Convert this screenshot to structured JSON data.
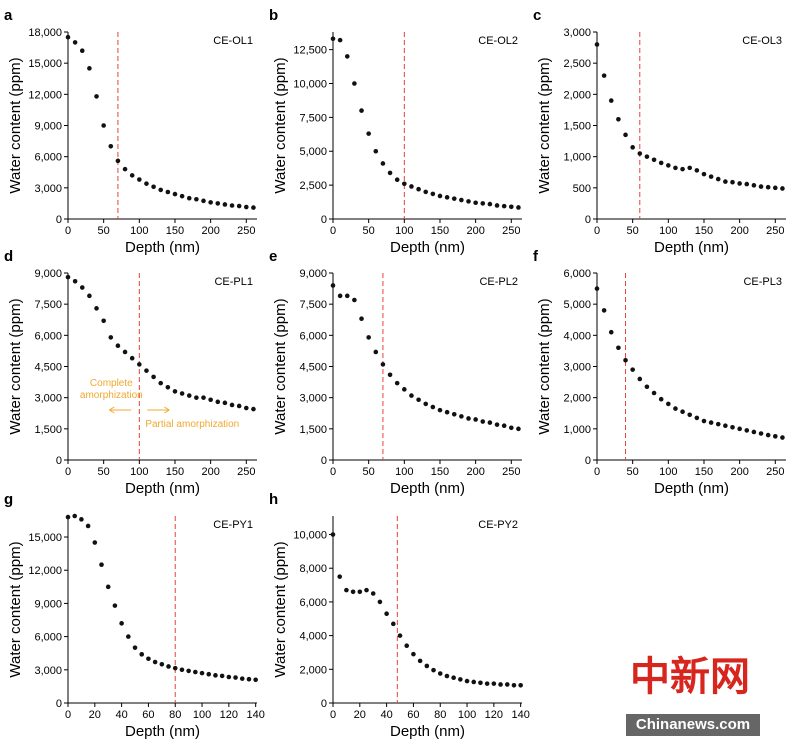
{
  "chart_data": [
    {
      "type": "scatter",
      "panel": "a",
      "title": "CE-OL1",
      "x_label": "Depth (nm)",
      "y_label": "Water content (ppm)",
      "color": "#111111",
      "vline": 70,
      "vline_color": "#e8413c",
      "x": [
        0,
        10,
        20,
        30,
        40,
        50,
        60,
        70,
        80,
        90,
        100,
        110,
        120,
        130,
        140,
        150,
        160,
        170,
        180,
        190,
        200,
        210,
        220,
        230,
        240,
        250,
        260
      ],
      "y": [
        17500,
        17000,
        16200,
        14500,
        11800,
        9000,
        7000,
        5600,
        4800,
        4200,
        3800,
        3400,
        3100,
        2800,
        2600,
        2400,
        2200,
        2000,
        1900,
        1750,
        1600,
        1500,
        1400,
        1300,
        1250,
        1150,
        1100
      ],
      "xlim": [
        0,
        265
      ],
      "ylim": [
        0,
        18000
      ],
      "xticks": [
        0,
        50,
        100,
        150,
        200,
        250
      ],
      "yticks": [
        0,
        {
          "value": 3000,
          "label": "3,000"
        },
        {
          "value": 6000,
          "label": "6,000"
        },
        {
          "value": 9000,
          "label": "9,000"
        },
        {
          "value": 12000,
          "label": "12,000"
        },
        {
          "value": 15000,
          "label": "15,000"
        },
        {
          "value": 18000,
          "label": "18,000"
        }
      ]
    },
    {
      "type": "scatter",
      "panel": "b",
      "title": "CE-OL2",
      "x_label": "Depth (nm)",
      "y_label": "Water content (ppm)",
      "color": "#111111",
      "vline": 100,
      "vline_color": "#e8413c",
      "x": [
        0,
        10,
        20,
        30,
        40,
        50,
        60,
        70,
        80,
        90,
        100,
        110,
        120,
        130,
        140,
        150,
        160,
        170,
        180,
        190,
        200,
        210,
        220,
        230,
        240,
        250,
        260
      ],
      "y": [
        13300,
        13200,
        12000,
        10000,
        8000,
        6300,
        5000,
        4100,
        3400,
        2900,
        2600,
        2400,
        2200,
        2000,
        1850,
        1700,
        1600,
        1500,
        1400,
        1300,
        1200,
        1150,
        1100,
        1000,
        950,
        900,
        850
      ],
      "xlim": [
        0,
        265
      ],
      "ylim": [
        0,
        13800
      ],
      "xticks": [
        0,
        50,
        100,
        150,
        200,
        250
      ],
      "yticks": [
        0,
        {
          "value": 2500,
          "label": "2,500"
        },
        {
          "value": 5000,
          "label": "5,000"
        },
        {
          "value": 7500,
          "label": "7,500"
        },
        {
          "value": 10000,
          "label": "10,000"
        },
        {
          "value": 12500,
          "label": "12,500"
        }
      ]
    },
    {
      "type": "scatter",
      "panel": "c",
      "title": "CE-OL3",
      "x_label": "Depth (nm)",
      "y_label": "Water content (ppm)",
      "color": "#111111",
      "vline": 60,
      "vline_color": "#e8413c",
      "x": [
        0,
        10,
        20,
        30,
        40,
        50,
        60,
        70,
        80,
        90,
        100,
        110,
        120,
        130,
        140,
        150,
        160,
        170,
        180,
        190,
        200,
        210,
        220,
        230,
        240,
        250,
        260
      ],
      "y": [
        2800,
        2300,
        1900,
        1600,
        1350,
        1150,
        1050,
        1000,
        950,
        900,
        860,
        820,
        800,
        820,
        780,
        720,
        680,
        640,
        600,
        590,
        570,
        560,
        540,
        520,
        510,
        500,
        490
      ],
      "xlim": [
        0,
        265
      ],
      "ylim": [
        0,
        3000
      ],
      "xticks": [
        0,
        50,
        100,
        150,
        200,
        250
      ],
      "yticks": [
        0,
        500,
        {
          "value": 1000,
          "label": "1,000"
        },
        {
          "value": 1500,
          "label": "1,500"
        },
        {
          "value": 2000,
          "label": "2,000"
        },
        {
          "value": 2500,
          "label": "2,500"
        },
        {
          "value": 3000,
          "label": "3,000"
        }
      ]
    },
    {
      "type": "scatter",
      "panel": "d",
      "title": "CE-PL1",
      "x_label": "Depth (nm)",
      "y_label": "Water content (ppm)",
      "color": "#111111",
      "vline": 100,
      "vline_color": "#e8413c",
      "annotations": [
        "Complete",
        "amorphization",
        "Partial amorphization"
      ],
      "annotation_color": "#f0a830",
      "x": [
        0,
        10,
        20,
        30,
        40,
        50,
        60,
        70,
        80,
        90,
        100,
        110,
        120,
        130,
        140,
        150,
        160,
        170,
        180,
        190,
        200,
        210,
        220,
        230,
        240,
        250,
        260
      ],
      "y": [
        8800,
        8600,
        8300,
        7900,
        7300,
        6700,
        5900,
        5500,
        5200,
        4900,
        4600,
        4300,
        4000,
        3700,
        3500,
        3300,
        3200,
        3100,
        3000,
        3000,
        2900,
        2800,
        2750,
        2650,
        2600,
        2500,
        2450
      ],
      "xlim": [
        0,
        265
      ],
      "ylim": [
        0,
        9000
      ],
      "xticks": [
        0,
        50,
        100,
        150,
        200,
        250
      ],
      "yticks": [
        0,
        {
          "value": 1500,
          "label": "1,500"
        },
        {
          "value": 3000,
          "label": "3,000"
        },
        {
          "value": 4500,
          "label": "4,500"
        },
        {
          "value": 6000,
          "label": "6,000"
        },
        {
          "value": 7500,
          "label": "7,500"
        },
        {
          "value": 9000,
          "label": "9,000"
        }
      ]
    },
    {
      "type": "scatter",
      "panel": "e",
      "title": "CE-PL2",
      "x_label": "Depth (nm)",
      "y_label": "Water content (ppm)",
      "color": "#111111",
      "vline": 70,
      "vline_color": "#e8413c",
      "x": [
        0,
        10,
        20,
        30,
        40,
        50,
        60,
        70,
        80,
        90,
        100,
        110,
        120,
        130,
        140,
        150,
        160,
        170,
        180,
        190,
        200,
        210,
        220,
        230,
        240,
        250,
        260
      ],
      "y": [
        8400,
        7900,
        7900,
        7700,
        6800,
        5900,
        5200,
        4600,
        4100,
        3700,
        3400,
        3100,
        2900,
        2700,
        2550,
        2400,
        2300,
        2200,
        2100,
        2000,
        1950,
        1850,
        1800,
        1700,
        1650,
        1550,
        1500
      ],
      "xlim": [
        0,
        265
      ],
      "ylim": [
        0,
        9000
      ],
      "xticks": [
        0,
        50,
        100,
        150,
        200,
        250
      ],
      "yticks": [
        0,
        {
          "value": 1500,
          "label": "1,500"
        },
        {
          "value": 3000,
          "label": "3,000"
        },
        {
          "value": 4500,
          "label": "4,500"
        },
        {
          "value": 6000,
          "label": "6,000"
        },
        {
          "value": 7500,
          "label": "7,500"
        },
        {
          "value": 9000,
          "label": "9,000"
        }
      ]
    },
    {
      "type": "scatter",
      "panel": "f",
      "title": "CE-PL3",
      "x_label": "Depth (nm)",
      "y_label": "Water content (ppm)",
      "color": "#111111",
      "vline": 40,
      "vline_color": "#e8413c",
      "x": [
        0,
        10,
        20,
        30,
        40,
        50,
        60,
        70,
        80,
        90,
        100,
        110,
        120,
        130,
        140,
        150,
        160,
        170,
        180,
        190,
        200,
        210,
        220,
        230,
        240,
        250,
        260
      ],
      "y": [
        5500,
        4800,
        4100,
        3600,
        3200,
        2900,
        2600,
        2350,
        2150,
        1950,
        1800,
        1650,
        1550,
        1450,
        1350,
        1250,
        1200,
        1150,
        1100,
        1050,
        1000,
        950,
        900,
        850,
        800,
        760,
        720
      ],
      "xlim": [
        0,
        265
      ],
      "ylim": [
        0,
        6000
      ],
      "xticks": [
        0,
        50,
        100,
        150,
        200,
        250
      ],
      "yticks": [
        0,
        {
          "value": 1000,
          "label": "1,000"
        },
        {
          "value": 2000,
          "label": "2,000"
        },
        {
          "value": 3000,
          "label": "3,000"
        },
        {
          "value": 4000,
          "label": "4,000"
        },
        {
          "value": 5000,
          "label": "5,000"
        },
        {
          "value": 6000,
          "label": "6,000"
        }
      ]
    },
    {
      "type": "scatter",
      "panel": "g",
      "title": "CE-PY1",
      "x_label": "Depth (nm)",
      "y_label": "Water content (ppm)",
      "color": "#111111",
      "vline": 80,
      "vline_color": "#e8413c",
      "x": [
        0,
        5,
        10,
        15,
        20,
        25,
        30,
        35,
        40,
        45,
        50,
        55,
        60,
        65,
        70,
        75,
        80,
        85,
        90,
        95,
        100,
        105,
        110,
        115,
        120,
        125,
        130,
        135,
        140
      ],
      "y": [
        16800,
        16900,
        16600,
        16000,
        14500,
        12500,
        10500,
        8800,
        7200,
        6000,
        5000,
        4400,
        4000,
        3700,
        3500,
        3300,
        3150,
        3000,
        2900,
        2800,
        2700,
        2600,
        2500,
        2450,
        2350,
        2300,
        2200,
        2150,
        2100
      ],
      "xlim": [
        0,
        141
      ],
      "ylim": [
        0,
        16900
      ],
      "xticks": [
        0,
        20,
        40,
        60,
        80,
        100,
        120,
        140
      ],
      "yticks": [
        0,
        {
          "value": 3000,
          "label": "3,000"
        },
        {
          "value": 6000,
          "label": "6,000"
        },
        {
          "value": 9000,
          "label": "9,000"
        },
        {
          "value": 12000,
          "label": "12,000"
        },
        {
          "value": 15000,
          "label": "15,000"
        }
      ]
    },
    {
      "type": "scatter",
      "panel": "h",
      "title": "CE-PY2",
      "x_label": "Depth (nm)",
      "y_label": "Water content (ppm)",
      "color": "#111111",
      "vline": 48,
      "vline_color": "#e8413c",
      "x": [
        0,
        5,
        10,
        15,
        20,
        25,
        30,
        35,
        40,
        45,
        50,
        55,
        60,
        65,
        70,
        75,
        80,
        85,
        90,
        95,
        100,
        105,
        110,
        115,
        120,
        125,
        130,
        135,
        140
      ],
      "y": [
        10000,
        7500,
        6700,
        6600,
        6600,
        6700,
        6500,
        6000,
        5300,
        4700,
        4000,
        3400,
        2900,
        2500,
        2200,
        1950,
        1750,
        1600,
        1500,
        1400,
        1300,
        1250,
        1200,
        1150,
        1150,
        1100,
        1100,
        1050,
        1050
      ],
      "xlim": [
        0,
        141
      ],
      "ylim": [
        0,
        11100
      ],
      "xticks": [
        0,
        20,
        40,
        60,
        80,
        100,
        120,
        140
      ],
      "yticks": [
        0,
        {
          "value": 2000,
          "label": "2,000"
        },
        {
          "value": 4000,
          "label": "4,000"
        },
        {
          "value": 6000,
          "label": "6,000"
        },
        {
          "value": 8000,
          "label": "8,000"
        },
        {
          "value": 10000,
          "label": "10,000"
        }
      ]
    }
  ],
  "watermark": {
    "logo": "中新网",
    "site": "Chinanews.com"
  }
}
